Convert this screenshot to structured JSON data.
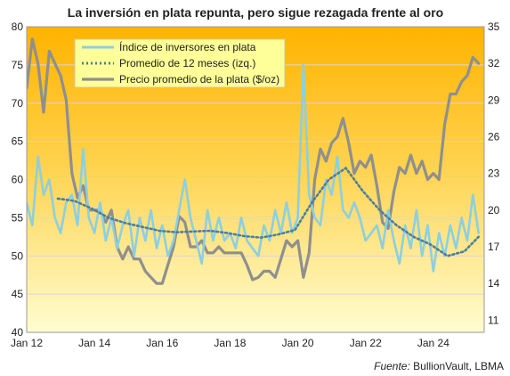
{
  "chart_data": {
    "type": "line",
    "title": "La inversión en plata repunta, pero sigue rezagada frente al oro",
    "source_prefix": "Fuente:",
    "source_text": " BullionVault, LBMA",
    "x_ticks": [
      "Jan 12",
      "Jan 14",
      "Jan 16",
      "Jan 18",
      "Jan 20",
      "Jan 22",
      "Jan 24"
    ],
    "x_range": [
      "2012-01",
      "2025-07"
    ],
    "y_left": {
      "range": [
        40,
        80
      ],
      "ticks": [
        "40",
        "45",
        "50",
        "55",
        "60",
        "65",
        "70",
        "75",
        "80"
      ]
    },
    "y_right": {
      "range": [
        10,
        35
      ],
      "ticks": [
        "11",
        "14",
        "17",
        "20",
        "23",
        "26",
        "29",
        "32",
        "35"
      ]
    },
    "grid": true,
    "legend_position": "top-left",
    "colors": {
      "index": "#8ccfe0",
      "avg": "#4a7fa0",
      "price": "#8f8f8f",
      "bg_top": "#ffb300",
      "bg_bottom": "#fffdd0",
      "legend_bg": "#ffff99"
    },
    "series": [
      {
        "name": "Índice de inversores en plata",
        "axis": "left",
        "x": [
          "2012-01",
          "2012-03",
          "2012-05",
          "2012-07",
          "2012-09",
          "2012-11",
          "2013-01",
          "2013-03",
          "2013-05",
          "2013-07",
          "2013-09",
          "2013-11",
          "2014-01",
          "2014-03",
          "2014-05",
          "2014-07",
          "2014-09",
          "2014-11",
          "2015-01",
          "2015-03",
          "2015-05",
          "2015-07",
          "2015-09",
          "2015-11",
          "2016-01",
          "2016-03",
          "2016-05",
          "2016-07",
          "2016-09",
          "2016-11",
          "2017-01",
          "2017-03",
          "2017-05",
          "2017-07",
          "2017-09",
          "2017-11",
          "2018-01",
          "2018-03",
          "2018-05",
          "2018-07",
          "2018-09",
          "2018-11",
          "2019-01",
          "2019-03",
          "2019-05",
          "2019-07",
          "2019-09",
          "2019-11",
          "2020-01",
          "2020-03",
          "2020-05",
          "2020-07",
          "2020-09",
          "2020-11",
          "2021-01",
          "2021-03",
          "2021-05",
          "2021-07",
          "2021-09",
          "2021-11",
          "2022-01",
          "2022-03",
          "2022-05",
          "2022-07",
          "2022-09",
          "2022-11",
          "2023-01",
          "2023-03",
          "2023-05",
          "2023-07",
          "2023-09",
          "2023-11",
          "2024-01",
          "2024-03",
          "2024-05",
          "2024-07",
          "2024-09",
          "2024-11",
          "2025-01",
          "2025-03",
          "2025-05"
        ],
        "values": [
          57,
          54,
          63,
          58,
          60,
          55,
          53,
          57,
          58,
          54,
          64,
          55,
          53,
          57,
          52,
          55,
          51,
          54,
          56,
          50,
          55,
          52,
          56,
          51,
          54,
          50,
          52,
          56,
          60,
          55,
          52,
          49,
          56,
          52,
          55,
          52,
          53,
          51,
          55,
          52,
          51,
          50,
          54,
          52,
          56,
          53,
          57,
          53,
          55,
          75,
          58,
          55,
          54,
          60,
          58,
          63,
          56,
          55,
          57,
          55,
          52,
          53,
          54,
          51,
          56,
          52,
          49,
          54,
          51,
          56,
          50,
          54,
          48,
          53,
          50,
          54,
          51,
          55,
          52,
          58,
          53
        ]
      },
      {
        "name": "Promedio de 12 meses (izq.)",
        "axis": "left",
        "x": [
          "2012-12",
          "2013-06",
          "2013-12",
          "2014-06",
          "2014-12",
          "2015-06",
          "2015-12",
          "2016-06",
          "2016-12",
          "2017-06",
          "2017-12",
          "2018-06",
          "2018-12",
          "2019-06",
          "2019-12",
          "2020-06",
          "2020-12",
          "2021-06",
          "2021-12",
          "2022-06",
          "2022-12",
          "2023-06",
          "2023-12",
          "2024-06",
          "2024-12",
          "2025-05"
        ],
        "values": [
          57.5,
          57.2,
          56.2,
          55.0,
          54.3,
          53.8,
          53.3,
          53.1,
          53.2,
          53.3,
          53.0,
          52.6,
          52.4,
          52.8,
          53.4,
          57.0,
          60.0,
          61.5,
          58.5,
          56.0,
          54.0,
          52.5,
          51.5,
          50.0,
          50.6,
          52.5
        ]
      },
      {
        "name": "Precio promedio de la plata ($/oz)",
        "axis": "right",
        "x": [
          "2012-01",
          "2012-03",
          "2012-05",
          "2012-07",
          "2012-09",
          "2012-11",
          "2013-01",
          "2013-03",
          "2013-05",
          "2013-07",
          "2013-09",
          "2013-11",
          "2014-01",
          "2014-03",
          "2014-05",
          "2014-07",
          "2014-09",
          "2014-11",
          "2015-01",
          "2015-03",
          "2015-05",
          "2015-07",
          "2015-09",
          "2015-11",
          "2016-01",
          "2016-03",
          "2016-05",
          "2016-07",
          "2016-09",
          "2016-11",
          "2017-01",
          "2017-03",
          "2017-05",
          "2017-07",
          "2017-09",
          "2017-11",
          "2018-01",
          "2018-03",
          "2018-05",
          "2018-07",
          "2018-09",
          "2018-11",
          "2019-01",
          "2019-03",
          "2019-05",
          "2019-07",
          "2019-09",
          "2019-11",
          "2020-01",
          "2020-03",
          "2020-05",
          "2020-07",
          "2020-09",
          "2020-11",
          "2021-01",
          "2021-03",
          "2021-05",
          "2021-07",
          "2021-09",
          "2021-11",
          "2022-01",
          "2022-03",
          "2022-05",
          "2022-07",
          "2022-09",
          "2022-11",
          "2023-01",
          "2023-03",
          "2023-05",
          "2023-07",
          "2023-09",
          "2023-11",
          "2024-01",
          "2024-03",
          "2024-05",
          "2024-07",
          "2024-09",
          "2024-11",
          "2025-01",
          "2025-03",
          "2025-05"
        ],
        "values": [
          30,
          34,
          32,
          28,
          33,
          32,
          31,
          29,
          23,
          21,
          22,
          20,
          20,
          20,
          19,
          20,
          17,
          16,
          17,
          16,
          16,
          15,
          14.5,
          14,
          14,
          15.5,
          17,
          19.5,
          19,
          17,
          17,
          17.5,
          16.5,
          16.5,
          17,
          16.5,
          16.5,
          16.5,
          16.5,
          15.5,
          14.3,
          14.5,
          15,
          15,
          14.5,
          16,
          17.5,
          17,
          17.5,
          14.5,
          16.5,
          22.5,
          25,
          24,
          25.5,
          26,
          27.5,
          25.5,
          23,
          24,
          23.5,
          24.5,
          22,
          19,
          18.5,
          21.5,
          23.5,
          23,
          24.5,
          23,
          24,
          22.5,
          23,
          22.5,
          27,
          29.5,
          29.5,
          30.5,
          31,
          32.5,
          32
        ]
      }
    ]
  }
}
